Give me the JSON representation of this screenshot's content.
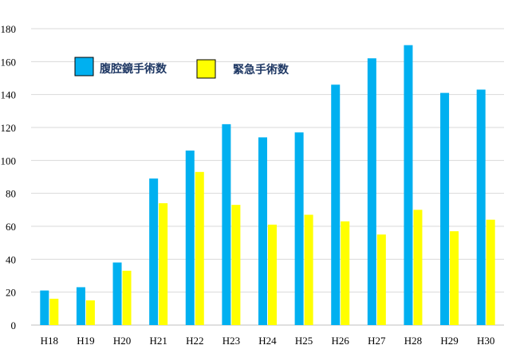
{
  "chart_data": {
    "type": "bar",
    "categories": [
      "H18",
      "H19",
      "H20",
      "H21",
      "H22",
      "H23",
      "H24",
      "H25",
      "H26",
      "H27",
      "H28",
      "H29",
      "H30"
    ],
    "series": [
      {
        "name": "腹腔鏡手術数",
        "color": "#00B0F0",
        "values": [
          21,
          23,
          38,
          89,
          106,
          122,
          114,
          117,
          146,
          162,
          170,
          141,
          143
        ]
      },
      {
        "name": "緊急手術数",
        "color": "#FFFF00",
        "values": [
          16,
          15,
          33,
          74,
          93,
          73,
          61,
          67,
          63,
          55,
          70,
          57,
          64
        ]
      }
    ],
    "yticks": [
      "0",
      "20",
      "40",
      "60",
      "80",
      "100",
      "120",
      "140",
      "160",
      "180"
    ],
    "ylim": [
      0,
      180
    ],
    "grid": true,
    "legend_position": "top-left"
  }
}
